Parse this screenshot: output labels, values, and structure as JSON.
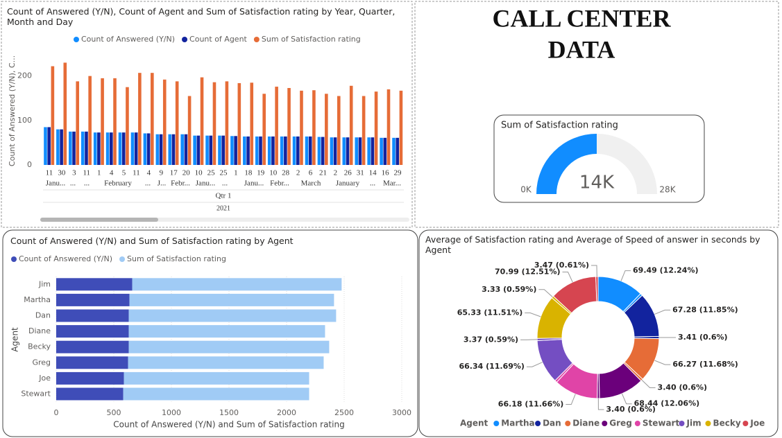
{
  "header": {
    "title_lines": [
      "CALL CENTER",
      "DATA"
    ]
  },
  "chart_data": [
    {
      "type": "bar",
      "title": "Count of Answered (Y/N), Count of Agent and Sum of Satisfaction rating by Year, Quarter, Month and Day",
      "y_label": "Count of Answered (Y/N), C...",
      "categories": [
        "11",
        "30",
        "3",
        "11",
        "1",
        "4",
        "5",
        "11",
        "4",
        "9",
        "17",
        "20",
        "10",
        "25",
        "25",
        "1",
        "18",
        "19",
        "10",
        "28",
        "2",
        "6",
        "21",
        "2",
        "26",
        "31",
        "14",
        "16",
        "29"
      ],
      "month_labels": [
        "Janu...",
        "...",
        "...",
        "February",
        "...",
        "J...",
        "Febr...",
        "Janu...",
        "...",
        "Janu...",
        "Febr...",
        "March",
        "January",
        "...",
        "Mar..."
      ],
      "quarter_label": "Qtr 1",
      "year_label": "2021",
      "series": [
        {
          "name": "Count of Answered (Y/N)",
          "color": "#118DFF",
          "values": [
            85,
            80,
            75,
            75,
            73,
            73,
            73,
            73,
            71,
            69,
            69,
            69,
            66,
            66,
            66,
            65,
            64,
            64,
            64,
            64,
            64,
            64,
            63,
            62,
            62,
            62,
            62,
            61,
            61
          ]
        },
        {
          "name": "Count of Agent",
          "color": "#12239E",
          "values": [
            85,
            80,
            75,
            75,
            73,
            73,
            73,
            73,
            71,
            69,
            69,
            69,
            66,
            66,
            66,
            65,
            64,
            64,
            64,
            64,
            64,
            64,
            63,
            62,
            62,
            62,
            62,
            61,
            61
          ]
        },
        {
          "name": "Sum of Satisfaction rating",
          "color": "#E66C37",
          "values": [
            222,
            230,
            188,
            200,
            195,
            195,
            175,
            207,
            207,
            192,
            188,
            155,
            197,
            186,
            188,
            184,
            185,
            160,
            176,
            173,
            167,
            168,
            160,
            155,
            178,
            155,
            165,
            170,
            167
          ]
        }
      ],
      "ylim": [
        0,
        240
      ],
      "yticks": [
        0,
        100,
        200
      ],
      "grid": false
    },
    {
      "type": "gauge",
      "title": "Sum of Satisfaction rating",
      "values": [
        14000
      ],
      "value_labels": [
        "14K"
      ],
      "ylim": [
        0,
        28000
      ],
      "yticks": [
        {
          "value": 0,
          "label": "0K"
        },
        {
          "value": 28000,
          "label": "28K"
        }
      ],
      "color": "#118DFF",
      "track_color": "#F0F0F0"
    },
    {
      "type": "hbar",
      "stacked": true,
      "title": "Count of Answered (Y/N) and Sum of Satisfaction rating by Agent",
      "x_label": "Count of Answered (Y/N) and Sum of Satisfaction rating",
      "y_label": "Agent",
      "categories": [
        "Jim",
        "Martha",
        "Dan",
        "Diane",
        "Becky",
        "Greg",
        "Joe",
        "Stewart"
      ],
      "series": [
        {
          "name": "Count of Answered (Y/N)",
          "color": "#3F4DB8",
          "values": [
            660,
            636,
            630,
            630,
            630,
            624,
            588,
            582
          ]
        },
        {
          "name": "Sum of Satisfaction rating",
          "color": "#A0CBF5",
          "values": [
            1818,
            1776,
            1800,
            1704,
            1740,
            1698,
            1608,
            1614
          ]
        }
      ],
      "xlim": [
        0,
        3000
      ],
      "xticks": [
        0,
        500,
        1000,
        1500,
        2000,
        2500,
        3000
      ],
      "grid": true
    },
    {
      "type": "donut",
      "title": "Average of Satisfaction rating and Average of Speed of answer in seconds by Agent",
      "legend_title": "Agent",
      "categories": [
        "Martha",
        "Dan",
        "Diane",
        "Greg",
        "Stewart",
        "Jim",
        "Becky",
        "Joe"
      ],
      "colors": [
        "#118DFF",
        "#12239E",
        "#E66C37",
        "#6B007B",
        "#E044A7",
        "#744EC2",
        "#D9B300",
        "#D64550"
      ],
      "series": [
        {
          "values": [
            3.44,
            3.41,
            3.4,
            3.4,
            3.43,
            3.37,
            3.33,
            3.47
          ],
          "value_labels": [
            null,
            "3.41 (0.6%)",
            "3.40 (0.6%)",
            "3.40 (0.6%)",
            null,
            "3.37 (0.59%)",
            "3.33 (0.59%)",
            "3.47 (0.61%)"
          ]
        },
        {
          "values": [
            69.49,
            67.28,
            66.27,
            68.44,
            66.18,
            66.34,
            65.33,
            70.99
          ],
          "value_labels": [
            "69.49 (12.24%)",
            "67.28 (11.85%)",
            "66.27 (11.68%)",
            "68.44 (12.06%)",
            "66.18 (11.66%)",
            "66.34 (11.69%)",
            "65.33 (11.51%)",
            "70.99 (12.51%)"
          ]
        }
      ]
    }
  ]
}
